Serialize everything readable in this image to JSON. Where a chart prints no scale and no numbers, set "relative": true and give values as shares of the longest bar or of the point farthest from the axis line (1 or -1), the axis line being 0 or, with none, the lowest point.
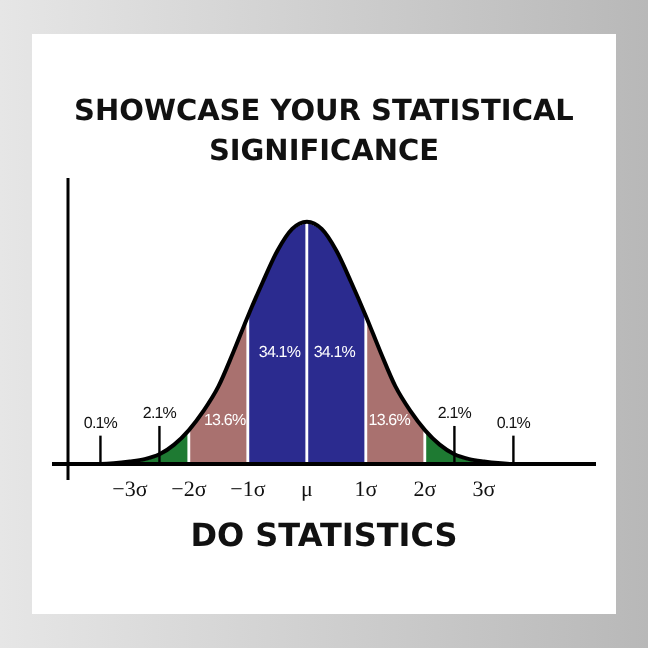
{
  "chart_data": {
    "type": "area",
    "title": "SHOWCASE YOUR STATISTICAL SIGNIFICANCE",
    "subtitle": "DO STATISTICS",
    "relative": true,
    "xlim": [
      -4.05,
      4.9
    ],
    "xticks": [
      {
        "value": -3,
        "label": "−3σ"
      },
      {
        "value": -2,
        "label": "−2σ"
      },
      {
        "value": -1,
        "label": "−1σ"
      },
      {
        "value": 0,
        "label": "μ"
      },
      {
        "value": 1,
        "label": "1σ"
      },
      {
        "value": 2,
        "label": "2σ"
      },
      {
        "value": 3,
        "label": "3σ"
      }
    ],
    "series": [
      {
        "color": "#1e7a32",
        "x": [
          -3,
          -2.75,
          -2.5,
          -2.25,
          -2
        ],
        "values": [
          0.01,
          0.02,
          0.04,
          0.08,
          0.14
        ]
      },
      {
        "color": "#a9716f",
        "x": [
          -2,
          -1.75,
          -1.5,
          -1.25,
          -1
        ],
        "values": [
          0.14,
          0.22,
          0.32,
          0.46,
          0.61
        ]
      },
      {
        "color": "#2b2b8f",
        "x": [
          -1,
          -0.75,
          -0.5,
          -0.25,
          0
        ],
        "values": [
          0.61,
          0.75,
          0.88,
          0.97,
          1
        ]
      },
      {
        "color": "#2b2b8f",
        "x": [
          0,
          0.25,
          0.5,
          0.75,
          1
        ],
        "values": [
          1,
          0.97,
          0.88,
          0.75,
          0.61
        ]
      },
      {
        "color": "#a9716f",
        "x": [
          1,
          1.25,
          1.5,
          1.75,
          2
        ],
        "values": [
          0.61,
          0.46,
          0.32,
          0.22,
          0.14
        ]
      },
      {
        "color": "#1e7a32",
        "x": [
          2,
          2.25,
          2.5,
          2.75,
          3
        ],
        "values": [
          0.14,
          0.08,
          0.04,
          0.02,
          0.01
        ]
      },
      {
        "type": "line",
        "color": "#000000",
        "x": [
          -4,
          -3.5,
          -3,
          -2.75,
          -2.5,
          -2.25,
          -2,
          -1.75,
          -1.5,
          -1.25,
          -1,
          -0.75,
          -0.5,
          -0.25,
          0,
          0.25,
          0.5,
          0.75,
          1,
          1.25,
          1.5,
          1.75,
          2,
          2.25,
          2.5,
          2.75,
          3,
          3.5,
          4
        ],
        "values": [
          0,
          0,
          0.01,
          0.02,
          0.04,
          0.08,
          0.14,
          0.22,
          0.32,
          0.46,
          0.61,
          0.75,
          0.88,
          0.97,
          1,
          0.97,
          0.88,
          0.75,
          0.61,
          0.46,
          0.32,
          0.22,
          0.14,
          0.08,
          0.04,
          0.02,
          0.01,
          0,
          0
        ]
      }
    ],
    "annotations": [
      "0.1%",
      "2.1%",
      "13.6%",
      "34.1%",
      "34.1%",
      "13.6%",
      "2.1%",
      "0.1%"
    ]
  }
}
